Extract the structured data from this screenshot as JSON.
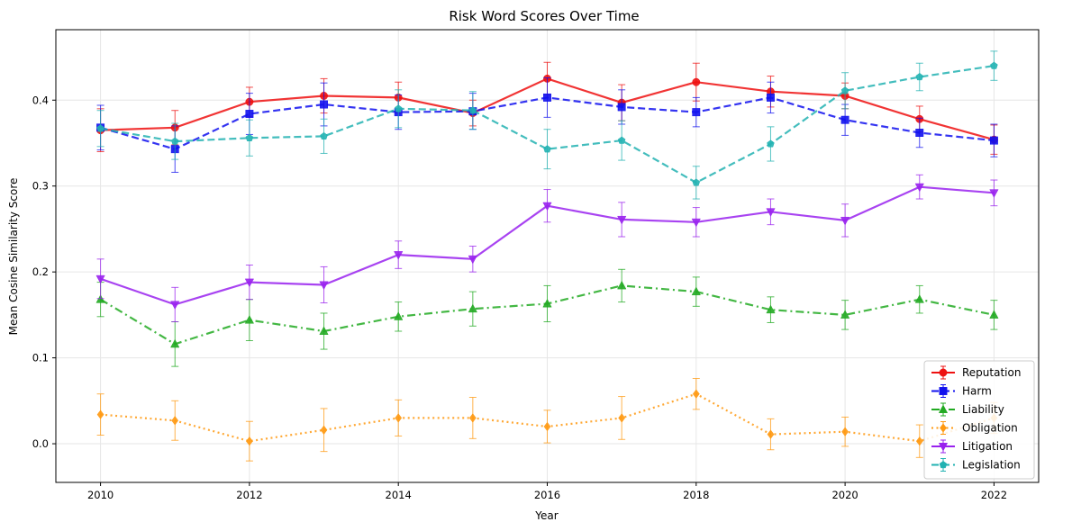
{
  "chart_data": {
    "type": "line",
    "title": "Risk Word Scores Over Time",
    "xlabel": "Year",
    "ylabel": "Mean Cosine Similarity Score",
    "x": [
      2010,
      2011,
      2012,
      2013,
      2014,
      2015,
      2016,
      2017,
      2018,
      2019,
      2020,
      2021,
      2022
    ],
    "xlim": [
      2009.4,
      2022.6
    ],
    "ylim": [
      -0.045,
      0.482
    ],
    "xticks": [
      2010,
      2012,
      2014,
      2016,
      2018,
      2020,
      2022
    ],
    "yticks": [
      0.0,
      0.1,
      0.2,
      0.3,
      0.4
    ],
    "ytick_labels": [
      "0.0",
      "0.1",
      "0.2",
      "0.3",
      "0.4"
    ],
    "grid": true,
    "legend_position": "bottom-right",
    "series": [
      {
        "name": "Reputation",
        "color": "#ee1111",
        "line_style": "solid",
        "marker": "circle",
        "values": [
          0.365,
          0.368,
          0.398,
          0.405,
          0.403,
          0.385,
          0.425,
          0.397,
          0.421,
          0.41,
          0.405,
          0.378,
          0.354
        ],
        "errors": [
          0.025,
          0.02,
          0.017,
          0.02,
          0.018,
          0.015,
          0.019,
          0.021,
          0.022,
          0.018,
          0.015,
          0.015,
          0.017
        ]
      },
      {
        "name": "Harm",
        "color": "#1111ee",
        "line_style": "dashed",
        "marker": "square",
        "values": [
          0.368,
          0.343,
          0.384,
          0.395,
          0.386,
          0.387,
          0.403,
          0.392,
          0.386,
          0.403,
          0.377,
          0.362,
          0.353
        ],
        "errors": [
          0.026,
          0.027,
          0.024,
          0.025,
          0.02,
          0.021,
          0.023,
          0.02,
          0.017,
          0.018,
          0.018,
          0.017,
          0.019
        ]
      },
      {
        "name": "Liability",
        "color": "#22aa22",
        "line_style": "dashdot",
        "marker": "triangle-up",
        "values": [
          0.168,
          0.116,
          0.144,
          0.131,
          0.148,
          0.157,
          0.163,
          0.184,
          0.177,
          0.156,
          0.15,
          0.168,
          0.15
        ],
        "errors": [
          0.02,
          0.026,
          0.024,
          0.021,
          0.017,
          0.02,
          0.021,
          0.019,
          0.017,
          0.015,
          0.017,
          0.016,
          0.017
        ]
      },
      {
        "name": "Obligation",
        "color": "#ff9911",
        "line_style": "dotted",
        "marker": "diamond",
        "values": [
          0.034,
          0.027,
          0.003,
          0.016,
          0.03,
          0.03,
          0.02,
          0.03,
          0.058,
          0.011,
          0.014,
          0.003,
          0.03
        ],
        "errors": [
          0.024,
          0.023,
          0.023,
          0.025,
          0.021,
          0.024,
          0.019,
          0.025,
          0.018,
          0.018,
          0.017,
          0.019,
          0.018
        ]
      },
      {
        "name": "Litigation",
        "color": "#9922ee",
        "line_style": "solid",
        "marker": "triangle-down",
        "values": [
          0.192,
          0.162,
          0.188,
          0.185,
          0.22,
          0.215,
          0.277,
          0.261,
          0.258,
          0.27,
          0.26,
          0.299,
          0.292
        ],
        "errors": [
          0.023,
          0.02,
          0.02,
          0.021,
          0.016,
          0.015,
          0.019,
          0.02,
          0.017,
          0.015,
          0.019,
          0.014,
          0.015
        ]
      },
      {
        "name": "Legislation",
        "color": "#22b2b2",
        "line_style": "dashed",
        "marker": "pentagon",
        "values": [
          0.367,
          0.352,
          0.356,
          0.358,
          0.39,
          0.388,
          0.343,
          0.353,
          0.304,
          0.349,
          0.411,
          0.427,
          0.44
        ],
        "errors": [
          0.021,
          0.021,
          0.021,
          0.02,
          0.022,
          0.022,
          0.023,
          0.023,
          0.019,
          0.02,
          0.021,
          0.016,
          0.017
        ]
      }
    ]
  }
}
